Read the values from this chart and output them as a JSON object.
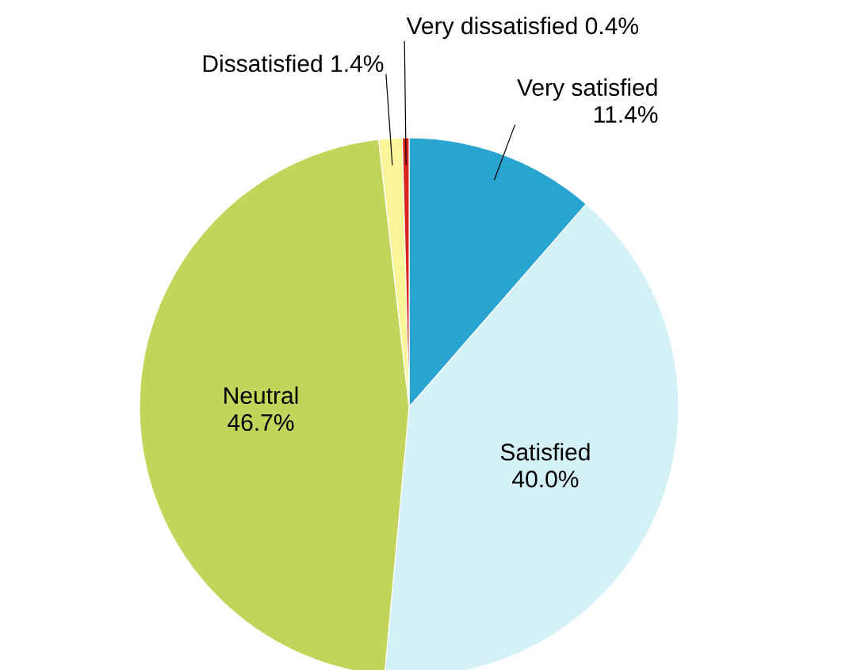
{
  "chart_data": {
    "type": "pie",
    "categories": [
      "Very satisfied",
      "Satisfied",
      "Neutral",
      "Dissatisfied",
      "Very dissatisfied"
    ],
    "values": [
      11.4,
      40.0,
      46.7,
      1.4,
      0.4
    ],
    "value_labels": [
      "11.4%",
      "40.0%",
      "46.7%",
      "1.4%",
      "0.4%"
    ],
    "colors": [
      "#29a3cf",
      "#d4f1f8",
      "#c2d45a",
      "#fbf59a",
      "#d9261c"
    ]
  }
}
